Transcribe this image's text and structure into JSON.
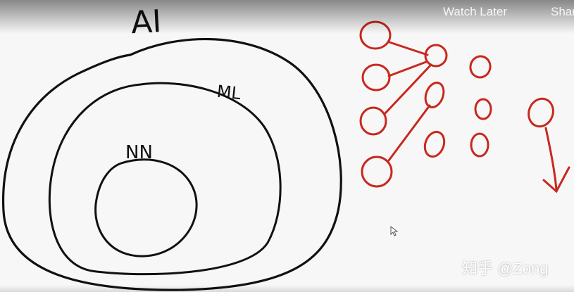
{
  "video": {
    "top_title": "",
    "watch_later_label": "Watch Later",
    "share_label": "Share"
  },
  "diagram": {
    "labels": {
      "outer": "AI",
      "middle": "ML",
      "inner": "NN"
    },
    "colors": {
      "ink": "#111111",
      "network": "#c8281e"
    }
  },
  "watermark": {
    "text": "知乎 @Zong"
  }
}
